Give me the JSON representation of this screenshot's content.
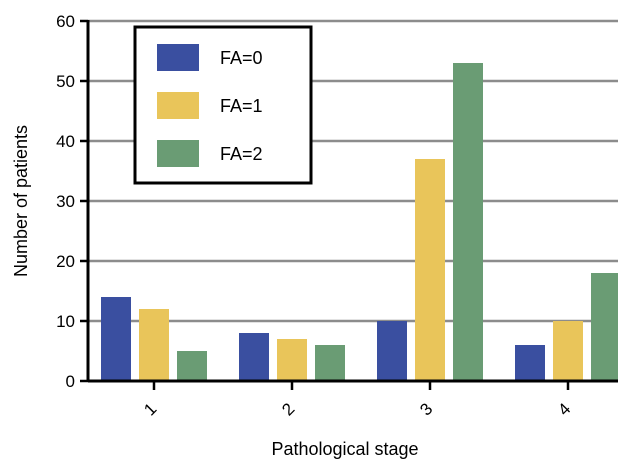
{
  "chart_data": {
    "type": "bar",
    "title": "",
    "xlabel": "Pathological stage",
    "ylabel": "Number of patients",
    "categories": [
      "1",
      "2",
      "3",
      "4"
    ],
    "series": [
      {
        "name": "FA=0",
        "color": "#3a4fa0",
        "values": [
          14,
          8,
          10,
          6
        ]
      },
      {
        "name": "FA=1",
        "color": "#e9c55a",
        "values": [
          12,
          7,
          37,
          10
        ]
      },
      {
        "name": "FA=2",
        "color": "#6a9c74",
        "values": [
          5,
          6,
          53,
          18
        ]
      }
    ],
    "ylim": [
      0,
      60
    ],
    "yticks": [
      0,
      10,
      20,
      30,
      40,
      50,
      60
    ],
    "grid": true,
    "legend_position": "top-left"
  }
}
